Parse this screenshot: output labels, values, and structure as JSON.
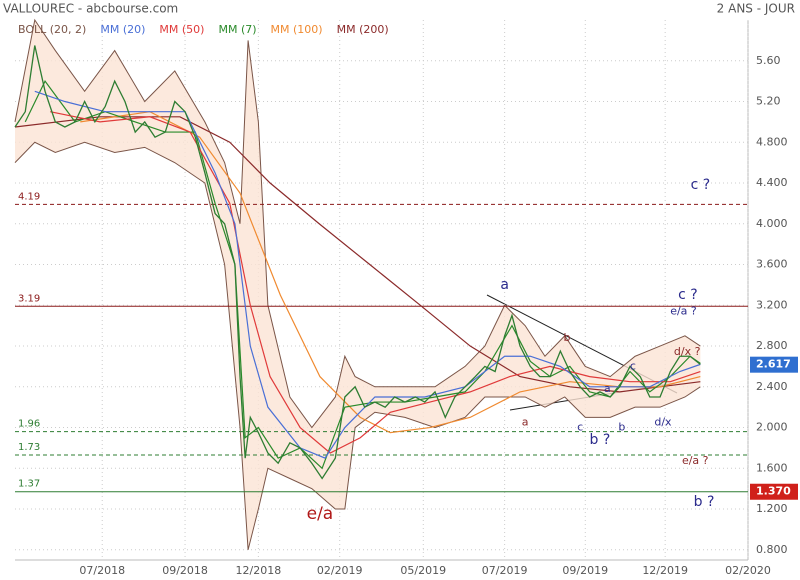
{
  "header": {
    "title": "VALLOUREC - abcbourse.com",
    "period": "2 ANS - JOUR"
  },
  "chart_data": {
    "type": "line",
    "xlim": [
      0,
      100
    ],
    "xticks": [
      {
        "value": 11.9,
        "label": "07/2018"
      },
      {
        "value": 23.2,
        "label": "09/2018"
      },
      {
        "value": 33.2,
        "label": "12/2018"
      },
      {
        "value": 44.3,
        "label": "02/2019"
      },
      {
        "value": 55.7,
        "label": "05/2019"
      },
      {
        "value": 66.8,
        "label": "07/2019"
      },
      {
        "value": 77.8,
        "label": "09/2019"
      },
      {
        "value": 88.7,
        "label": "12/2019"
      },
      {
        "value": 100,
        "label": "02/2020"
      }
    ],
    "ylim": [
      0.7,
      6.0
    ],
    "yticks": [
      {
        "value": 0.8,
        "label": "0.800"
      },
      {
        "value": 1.2,
        "label": "1.200"
      },
      {
        "value": 1.6,
        "label": "1.600"
      },
      {
        "value": 2.0,
        "label": "2.000"
      },
      {
        "value": 2.4,
        "label": "2.400"
      },
      {
        "value": 2.8,
        "label": "2.800"
      },
      {
        "value": 3.2,
        "label": "3.200"
      },
      {
        "value": 3.6,
        "label": "3.600"
      },
      {
        "value": 4.0,
        "label": "4.000"
      },
      {
        "value": 4.4,
        "label": "4.400"
      },
      {
        "value": 4.8,
        "label": "4.800"
      },
      {
        "value": 5.2,
        "label": "5.20"
      },
      {
        "value": 5.6,
        "label": "5.60"
      }
    ],
    "grid": true,
    "price": {
      "color": "#2e7d32",
      "x": [
        0,
        1.4,
        2.7,
        4.1,
        5.5,
        6.8,
        8.2,
        9.5,
        10.9,
        12.3,
        13.6,
        15,
        16.4,
        17.7,
        19.1,
        20.5,
        21.8,
        23.2,
        24.6,
        25.9,
        27.3,
        28.6,
        30,
        30.7,
        31.4,
        32.1,
        33.2,
        34.5,
        35.9,
        37.5,
        38.9,
        40.5,
        41.9,
        43.7,
        45,
        46.4,
        47.7,
        49.1,
        50.5,
        51.8,
        53.2,
        54.6,
        55.9,
        57.3,
        58.7,
        60,
        61.4,
        62.8,
        64.1,
        65.5,
        66.8,
        67.8,
        68.9,
        70.3,
        71.6,
        73,
        74.4,
        75.7,
        77.1,
        78.4,
        79.8,
        81.2,
        82.5,
        83.9,
        85.3,
        86.6,
        88,
        89.4,
        90.7,
        92.1,
        93.5
      ],
      "values": [
        4.95,
        5.1,
        5.75,
        5.3,
        5.0,
        4.95,
        5.0,
        5.2,
        5.0,
        5.15,
        5.4,
        5.2,
        4.9,
        5.0,
        4.85,
        4.9,
        5.2,
        5.1,
        4.85,
        4.5,
        4.1,
        4.0,
        3.6,
        2.5,
        1.7,
        2.1,
        1.95,
        1.75,
        1.65,
        1.85,
        1.8,
        1.65,
        1.5,
        1.7,
        2.3,
        2.4,
        2.2,
        2.25,
        2.2,
        2.3,
        2.25,
        2.3,
        2.25,
        2.35,
        2.1,
        2.3,
        2.4,
        2.5,
        2.6,
        2.55,
        2.9,
        3.1,
        2.8,
        2.6,
        2.5,
        2.5,
        2.75,
        2.55,
        2.4,
        2.3,
        2.35,
        2.3,
        2.4,
        2.6,
        2.5,
        2.3,
        2.3,
        2.55,
        2.7,
        2.7,
        2.62
      ]
    },
    "bollinger": {
      "name": "BOLL (20, 2)",
      "color": "#7a5548",
      "fill": "#fbe3d4",
      "x": [
        0,
        2.7,
        5.5,
        9.5,
        13.6,
        17.7,
        21.8,
        25.9,
        28.6,
        30.7,
        31.8,
        33.2,
        34.5,
        37.5,
        40.5,
        43.7,
        45,
        46.4,
        49.1,
        53.2,
        57.3,
        61.4,
        64.1,
        66.8,
        69.6,
        72.3,
        75,
        77.8,
        81.2,
        84.6,
        88,
        91.4,
        93.5
      ],
      "upper": [
        5.0,
        6.0,
        5.7,
        5.3,
        5.7,
        5.2,
        5.5,
        5.0,
        4.6,
        4.0,
        5.8,
        5.0,
        3.2,
        2.3,
        2.0,
        2.3,
        2.7,
        2.5,
        2.4,
        2.4,
        2.4,
        2.6,
        2.8,
        3.2,
        3.0,
        2.7,
        2.9,
        2.6,
        2.5,
        2.7,
        2.8,
        2.9,
        2.8
      ],
      "lower": [
        4.6,
        4.8,
        4.7,
        4.8,
        4.7,
        4.75,
        4.6,
        4.4,
        3.6,
        2.0,
        0.8,
        1.2,
        1.6,
        1.5,
        1.4,
        1.2,
        1.2,
        2.0,
        2.15,
        2.1,
        2.0,
        2.1,
        2.3,
        2.3,
        2.3,
        2.2,
        2.3,
        2.1,
        2.1,
        2.2,
        2.2,
        2.3,
        2.4
      ]
    },
    "series": [
      {
        "name": "MM (20)",
        "color": "#4a6fd6",
        "x": [
          2.7,
          6.8,
          12.3,
          17.7,
          23.2,
          27.3,
          30,
          32.1,
          34.5,
          38.9,
          42.3,
          45,
          49.1,
          55.9,
          61.4,
          66.8,
          70.3,
          74.4,
          78.4,
          82.5,
          86.6,
          90.7,
          93.5
        ],
        "values": [
          5.3,
          5.2,
          5.1,
          5.1,
          5.1,
          4.5,
          4.0,
          2.8,
          2.2,
          1.8,
          1.7,
          2.0,
          2.3,
          2.3,
          2.4,
          2.7,
          2.7,
          2.6,
          2.4,
          2.4,
          2.4,
          2.55,
          2.62
        ]
      },
      {
        "name": "MM (50)",
        "color": "#e03a3a",
        "x": [
          4.8,
          11.6,
          18.4,
          23.9,
          29.3,
          32.1,
          34.8,
          38.9,
          43,
          47.1,
          51.2,
          56.6,
          62.1,
          67.5,
          73,
          78.4,
          83.9,
          89.4,
          93.5
        ],
        "values": [
          5.1,
          5.0,
          5.05,
          4.9,
          4.2,
          3.2,
          2.5,
          2.0,
          1.75,
          1.9,
          2.15,
          2.25,
          2.35,
          2.5,
          2.6,
          2.5,
          2.45,
          2.45,
          2.55
        ]
      },
      {
        "name": "MM (7)",
        "color": "#2a8a2a",
        "x": [
          1.4,
          4.1,
          8.2,
          12.3,
          16.4,
          20.5,
          24.6,
          27.3,
          30,
          31.4,
          33.2,
          35.9,
          38.9,
          41.9,
          45,
          49.1,
          53.2,
          57.3,
          61.4,
          64.1,
          67.8,
          70.3,
          73,
          75.7,
          78.4,
          81.2,
          83.9,
          86.6,
          89.4,
          92.1,
          93.5
        ],
        "values": [
          5.0,
          5.4,
          5.0,
          5.1,
          5.0,
          4.9,
          4.9,
          4.2,
          3.6,
          1.9,
          2.0,
          1.7,
          1.8,
          1.6,
          2.2,
          2.25,
          2.25,
          2.3,
          2.35,
          2.55,
          3.0,
          2.65,
          2.5,
          2.6,
          2.35,
          2.3,
          2.55,
          2.35,
          2.5,
          2.7,
          2.63
        ]
      },
      {
        "name": "MM (100)",
        "color": "#f08a30",
        "x": [
          8.9,
          18.4,
          25.2,
          30.7,
          36.2,
          41.6,
          47.1,
          51.2,
          56.6,
          62.1,
          68.9,
          75.7,
          82.5,
          88,
          93.5
        ],
        "values": [
          5.0,
          5.1,
          4.85,
          4.3,
          3.3,
          2.5,
          2.1,
          1.95,
          2.0,
          2.1,
          2.35,
          2.45,
          2.4,
          2.4,
          2.5
        ]
      },
      {
        "name": "MM (200)",
        "color": "#8b2a2a",
        "x": [
          0,
          11.6,
          22.5,
          29.3,
          34.8,
          41.5,
          48.4,
          55.3,
          62.1,
          68.9,
          75.7,
          82.5,
          88,
          93.5
        ],
        "values": [
          4.95,
          5.05,
          5.05,
          4.8,
          4.4,
          4.0,
          3.6,
          3.2,
          2.8,
          2.5,
          2.4,
          2.35,
          2.4,
          2.45
        ]
      }
    ],
    "levels": [
      {
        "value": 4.19,
        "color": "#8b1a1a",
        "dashed": true
      },
      {
        "value": 3.19,
        "color": "#8b1a1a",
        "dashed": false
      },
      {
        "value": 1.96,
        "color": "#2e7d32",
        "dashed": true
      },
      {
        "value": 1.73,
        "color": "#2e7d32",
        "dashed": true
      },
      {
        "value": 1.37,
        "color": "#2e7d32",
        "dashed": false
      }
    ],
    "price_tags": [
      {
        "value": 2.617,
        "color": "#2f6fd0"
      },
      {
        "value": 1.37,
        "label": "1.370",
        "color": "#d0201a"
      }
    ],
    "annotations": [
      {
        "text": "c ?",
        "x": 93.5,
        "y": 4.38,
        "color": "#2b2b8c",
        "size": 14
      },
      {
        "text": "a",
        "x": 66.8,
        "y": 3.4,
        "color": "#2b2b8c",
        "size": 14
      },
      {
        "text": "c ?",
        "x": 91.8,
        "y": 3.3,
        "color": "#2b2b8c",
        "size": 14
      },
      {
        "text": "e/a ?",
        "x": 91.2,
        "y": 3.14,
        "color": "#2b2b8c",
        "size": 11
      },
      {
        "text": "b",
        "x": 75.3,
        "y": 2.88,
        "color": "#8b2a2a",
        "size": 11
      },
      {
        "text": "c",
        "x": 84.3,
        "y": 2.6,
        "color": "#2b2b8c",
        "size": 11
      },
      {
        "text": "a",
        "x": 80.8,
        "y": 2.38,
        "color": "#2b2b8c",
        "size": 11
      },
      {
        "text": "d/x ?",
        "x": 91.7,
        "y": 2.74,
        "color": "#8b2a2a",
        "size": 11
      },
      {
        "text": "a",
        "x": 69.6,
        "y": 2.05,
        "color": "#8b2a2a",
        "size": 11
      },
      {
        "text": "c",
        "x": 77.1,
        "y": 2.0,
        "color": "#2b2b8c",
        "size": 11
      },
      {
        "text": "b ?",
        "x": 79.8,
        "y": 1.88,
        "color": "#2b2b8c",
        "size": 14
      },
      {
        "text": "b",
        "x": 82.8,
        "y": 2.0,
        "color": "#2b2b8c",
        "size": 11
      },
      {
        "text": "d/x",
        "x": 88.4,
        "y": 2.05,
        "color": "#2b2b8c",
        "size": 11
      },
      {
        "text": "e/a",
        "x": 41.6,
        "y": 1.15,
        "color": "#b01818",
        "size": 17
      },
      {
        "text": "e/a ?",
        "x": 92.8,
        "y": 1.67,
        "color": "#8b2a2a",
        "size": 11
      },
      {
        "text": "b ?",
        "x": 94.0,
        "y": 1.27,
        "color": "#2b2b8c",
        "size": 14
      }
    ]
  }
}
